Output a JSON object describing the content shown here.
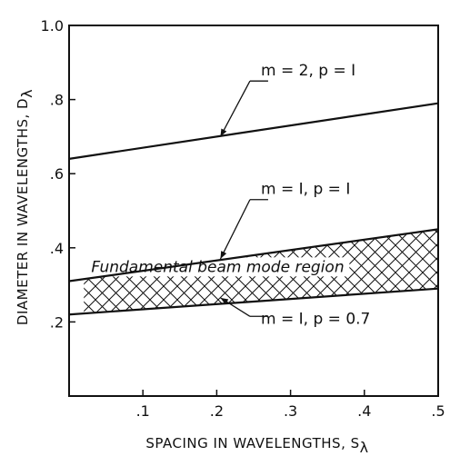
{
  "chart_data": {
    "type": "line",
    "xlabel": "SPACING IN WAVELENGTHS, S",
    "xlabel_sub": "λ",
    "ylabel": "DIAMETER IN WAVELENGTHS, D",
    "ylabel_sub": "λ",
    "xlim": [
      0,
      0.5
    ],
    "ylim": [
      0,
      1.0
    ],
    "x_ticks": [
      {
        "value": 0.1,
        "label": ".1"
      },
      {
        "value": 0.2,
        "label": ".2"
      },
      {
        "value": 0.3,
        "label": ".3"
      },
      {
        "value": 0.4,
        "label": ".4"
      },
      {
        "value": 0.5,
        "label": ".5"
      }
    ],
    "y_ticks": [
      {
        "value": 0.2,
        "label": ".2"
      },
      {
        "value": 0.4,
        "label": ".4"
      },
      {
        "value": 0.6,
        "label": ".6"
      },
      {
        "value": 0.8,
        "label": ".8"
      },
      {
        "value": 1.0,
        "label": "1.0"
      }
    ],
    "grid": false,
    "series": [
      {
        "name": "m = 2,  p = I",
        "x": [
          0,
          0.5
        ],
        "y": [
          0.64,
          0.79
        ]
      },
      {
        "name": "m = I,  p = I",
        "x": [
          0,
          0.5
        ],
        "y": [
          0.31,
          0.45
        ]
      },
      {
        "name": "m = I,  p = 0.7",
        "x": [
          0,
          0.5
        ],
        "y": [
          0.22,
          0.29
        ]
      }
    ],
    "shaded_region": {
      "label": "Fundamental beam mode region",
      "between": [
        "m = I,  p = 0.7",
        "m = I,  p = I"
      ],
      "x_range": [
        0.02,
        0.5
      ]
    }
  }
}
